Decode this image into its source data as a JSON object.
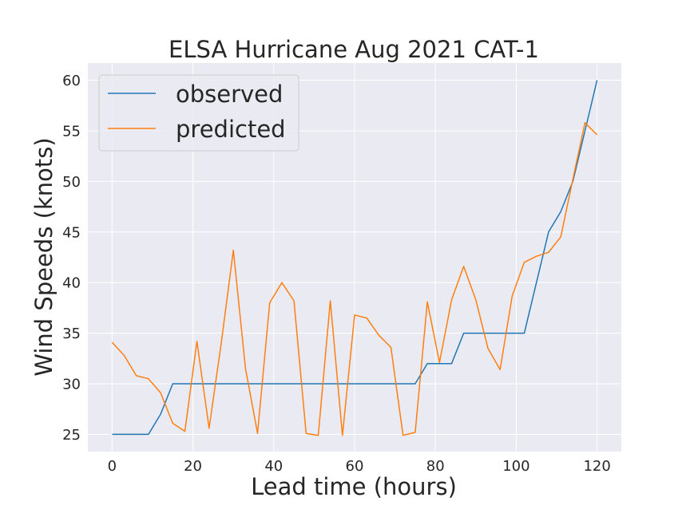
{
  "chart_data": {
    "type": "line",
    "title": "ELSA Hurricane Aug 2021 CAT-1",
    "xlabel": "Lead time (hours)",
    "ylabel": "Wind Speeds (knots)",
    "xlim": [
      -6,
      126
    ],
    "ylim": [
      23.3,
      61.7
    ],
    "xticks": [
      0,
      20,
      40,
      60,
      80,
      100,
      120
    ],
    "yticks": [
      25,
      30,
      35,
      40,
      45,
      50,
      55,
      60
    ],
    "grid": true,
    "legend_position": "top-left",
    "colors": {
      "background": "#eaeaf2",
      "grid": "#ffffff",
      "observed": "#1f77b4",
      "predicted": "#ff7f0e"
    },
    "series": [
      {
        "name": "observed",
        "x": [
          0,
          3,
          6,
          9,
          12,
          15,
          18,
          21,
          24,
          27,
          30,
          33,
          36,
          39,
          42,
          45,
          48,
          51,
          54,
          57,
          60,
          63,
          66,
          69,
          72,
          75,
          78,
          81,
          84,
          87,
          90,
          93,
          96,
          99,
          102,
          105,
          108,
          111,
          114,
          117,
          120
        ],
        "y": [
          25,
          25,
          25,
          25,
          27,
          30,
          30,
          30,
          30,
          30,
          30,
          30,
          30,
          30,
          30,
          30,
          30,
          30,
          30,
          30,
          30,
          30,
          30,
          30,
          30,
          30,
          32,
          32,
          32,
          35,
          35,
          35,
          35,
          35,
          35,
          40,
          45,
          47,
          50,
          55,
          60
        ]
      },
      {
        "name": "predicted",
        "x": [
          0,
          3,
          6,
          9,
          12,
          15,
          18,
          21,
          24,
          27,
          30,
          33,
          36,
          39,
          42,
          45,
          48,
          51,
          54,
          57,
          60,
          63,
          66,
          69,
          72,
          75,
          78,
          81,
          84,
          87,
          90,
          93,
          96,
          99,
          102,
          105,
          108,
          111,
          114,
          117,
          120
        ],
        "y": [
          34.1,
          32.8,
          30.8,
          30.5,
          29.1,
          26.1,
          25.3,
          34.2,
          25.6,
          34.0,
          43.2,
          31.5,
          25.1,
          38.0,
          40.0,
          38.2,
          25.1,
          24.9,
          38.2,
          24.9,
          36.8,
          36.5,
          34.8,
          33.6,
          24.9,
          25.2,
          38.1,
          32.1,
          38.3,
          41.6,
          38.3,
          33.5,
          31.4,
          38.7,
          42.0,
          42.6,
          43.0,
          44.5,
          50.2,
          55.8,
          54.6
        ]
      }
    ]
  }
}
